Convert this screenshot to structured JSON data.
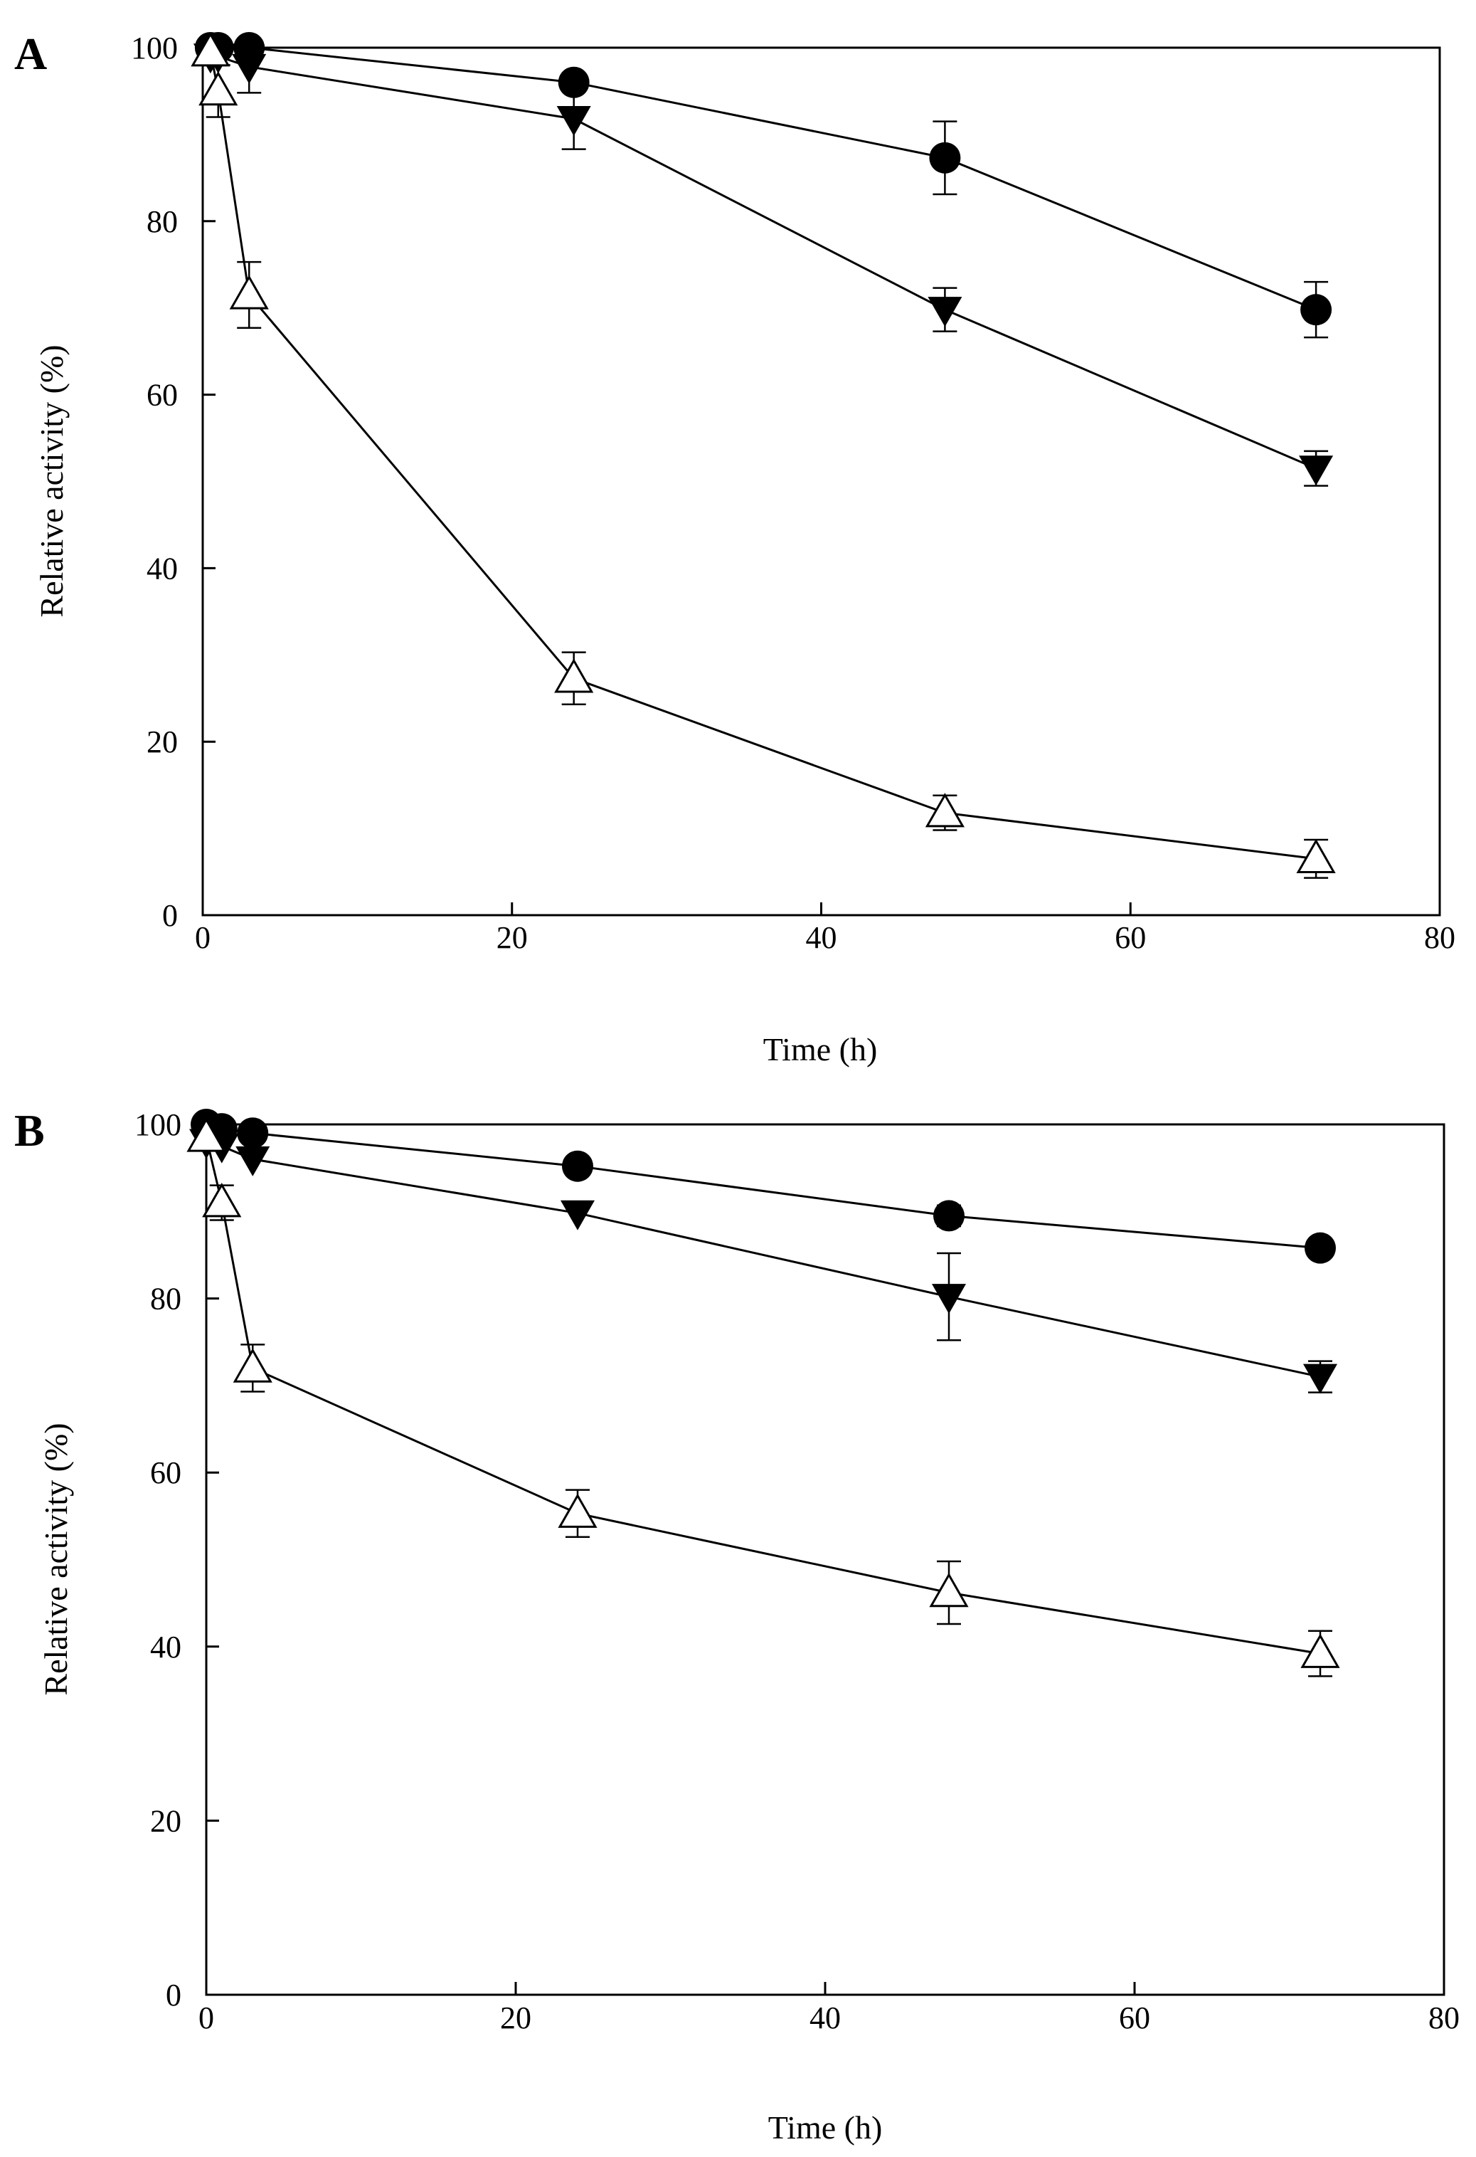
{
  "chart_data": [
    {
      "panel_label": "A",
      "type": "line",
      "xlabel": "Time (h)",
      "ylabel": "Relative activity (%)",
      "xlim": [
        0,
        80
      ],
      "ylim": [
        0,
        100
      ],
      "xticks": [
        0,
        20,
        40,
        60,
        80
      ],
      "yticks": [
        0,
        20,
        40,
        60,
        80,
        100
      ],
      "grid": false,
      "legend": "none",
      "series": [
        {
          "marker": "filled-circle",
          "points": [
            {
              "x": 0.5,
              "y": 100,
              "err": 0
            },
            {
              "x": 1,
              "y": 100,
              "err": 0
            },
            {
              "x": 3,
              "y": 100,
              "err": 0
            },
            {
              "x": 24,
              "y": 96,
              "err": 0
            },
            {
              "x": 48,
              "y": 87.3,
              "err": 4.2
            },
            {
              "x": 72,
              "y": 69.8,
              "err": 3.2
            }
          ]
        },
        {
          "marker": "filled-triangle-down",
          "points": [
            {
              "x": 0.5,
              "y": 99,
              "err": 0
            },
            {
              "x": 1,
              "y": 99,
              "err": 0
            },
            {
              "x": 3,
              "y": 97.8,
              "err": 3
            },
            {
              "x": 24,
              "y": 91.8,
              "err": 3.5
            },
            {
              "x": 48,
              "y": 69.8,
              "err": 2.5
            },
            {
              "x": 72,
              "y": 51.5,
              "err": 2
            }
          ]
        },
        {
          "marker": "open-triangle-up",
          "points": [
            {
              "x": 0.5,
              "y": 99.5,
              "err": 0
            },
            {
              "x": 1,
              "y": 95,
              "err": 3
            },
            {
              "x": 3,
              "y": 71.5,
              "err": 3.8
            },
            {
              "x": 24,
              "y": 27.3,
              "err": 3
            },
            {
              "x": 48,
              "y": 11.8,
              "err": 2
            },
            {
              "x": 72,
              "y": 6.5,
              "err": 2.2
            }
          ]
        }
      ]
    },
    {
      "panel_label": "B",
      "type": "line",
      "xlabel": "Time (h)",
      "ylabel": "Relative activity (%)",
      "xlim": [
        0,
        80
      ],
      "ylim": [
        0,
        100
      ],
      "xticks": [
        0,
        20,
        40,
        60,
        80
      ],
      "yticks": [
        0,
        20,
        40,
        60,
        80,
        100
      ],
      "grid": false,
      "legend": "none",
      "series": [
        {
          "marker": "filled-circle",
          "points": [
            {
              "x": 0,
              "y": 100,
              "err": 0
            },
            {
              "x": 1,
              "y": 99.5,
              "err": 0
            },
            {
              "x": 3,
              "y": 99,
              "err": 0
            },
            {
              "x": 24,
              "y": 95.2,
              "err": 0
            },
            {
              "x": 48,
              "y": 89.5,
              "err": 1.2
            },
            {
              "x": 72,
              "y": 85.8,
              "err": 0
            }
          ]
        },
        {
          "marker": "filled-triangle-down",
          "points": [
            {
              "x": 0,
              "y": 98,
              "err": 0
            },
            {
              "x": 1,
              "y": 97.5,
              "err": 0
            },
            {
              "x": 3,
              "y": 96,
              "err": 0
            },
            {
              "x": 24,
              "y": 89.8,
              "err": 0
            },
            {
              "x": 48,
              "y": 80.2,
              "err": 5
            },
            {
              "x": 72,
              "y": 71,
              "err": 1.8
            }
          ]
        },
        {
          "marker": "open-triangle-up",
          "points": [
            {
              "x": 0,
              "y": 98.5,
              "err": 0
            },
            {
              "x": 1,
              "y": 91,
              "err": 2
            },
            {
              "x": 3,
              "y": 72,
              "err": 2.7
            },
            {
              "x": 24,
              "y": 55.3,
              "err": 2.7
            },
            {
              "x": 48,
              "y": 46.2,
              "err": 3.6
            },
            {
              "x": 72,
              "y": 39.2,
              "err": 2.6
            }
          ]
        }
      ]
    }
  ]
}
